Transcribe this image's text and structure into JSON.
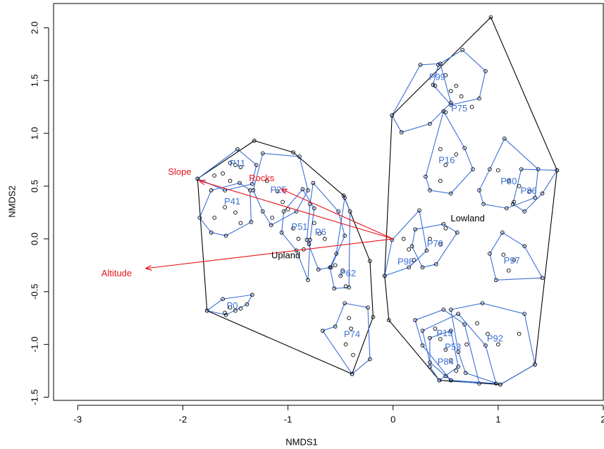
{
  "chart_data": {
    "type": "scatter",
    "x_label": "NMDS1",
    "y_label": "NMDS2",
    "xlim": [
      -3.23,
      2.0
    ],
    "ylim": [
      -1.53,
      2.23
    ],
    "xticks": [
      -3,
      -2,
      -1,
      0,
      1,
      2
    ],
    "yticks": [
      {
        "value": -1.5,
        "label": "-1.5"
      },
      {
        "value": -1,
        "label": "-1.0"
      },
      {
        "value": -0.5,
        "label": "-0.5"
      },
      {
        "value": 0,
        "label": "0.0"
      },
      {
        "value": 0.5,
        "label": "0.5"
      },
      {
        "value": 1,
        "label": "1.0"
      },
      {
        "value": 1.5,
        "label": "1.5"
      },
      {
        "value": 2,
        "label": "2.0"
      }
    ],
    "point_color": "#000000",
    "hull_color": "#000000",
    "group_color": "#3a6fd6",
    "arrow_color": "#e8141b",
    "points": {
      "x": [
        -1.55,
        -1.5,
        -1.45,
        -1.62,
        -1.7,
        -1.55,
        -1.6,
        -1.5,
        -1.45,
        -1.7,
        -1.2,
        -1.1,
        -1.05,
        -1.0,
        -1.15,
        -0.95,
        -0.9,
        -0.85,
        -0.8,
        -0.75,
        -0.7,
        -0.65,
        -0.55,
        -0.5,
        -0.45,
        -0.48,
        -0.42,
        -0.4,
        -0.45,
        -0.38,
        -1.55,
        -1.5,
        -1.45,
        -1.6,
        0.5,
        0.6,
        0.55,
        0.65,
        0.4,
        0.75,
        0.5,
        0.45,
        0.6,
        0.5,
        0.45,
        1.0,
        1.1,
        1.2,
        1.3,
        1.15,
        0.1,
        0.15,
        0.2,
        0.35,
        0.45,
        0.5,
        1.05,
        1.15,
        1.1,
        0.4,
        0.45,
        0.5,
        0.55,
        0.6,
        0.8,
        0.9,
        1.0,
        1.2,
        0.7,
        0.5
      ],
      "y": [
        0.72,
        0.7,
        0.68,
        0.62,
        0.6,
        0.55,
        0.3,
        0.25,
        0.15,
        0.2,
        0.55,
        0.45,
        0.35,
        0.28,
        0.2,
        0.1,
        0.0,
        -0.1,
        -0.05,
        0.15,
        0.05,
        0.0,
        -0.25,
        -0.35,
        -0.45,
        -0.3,
        -0.75,
        -0.85,
        -1.0,
        -1.1,
        -0.65,
        -0.68,
        -0.66,
        -0.7,
        1.55,
        1.45,
        1.4,
        1.35,
        1.45,
        1.25,
        1.2,
        0.85,
        0.8,
        0.7,
        0.55,
        0.65,
        0.55,
        0.5,
        0.45,
        0.35,
        0.0,
        -0.1,
        -0.2,
        0.0,
        -0.05,
        0.1,
        -0.15,
        -0.2,
        -0.3,
        -0.85,
        -0.95,
        -1.05,
        -1.15,
        -1.25,
        -0.8,
        -0.9,
        -1.0,
        -0.9,
        -1.0,
        -1.3
      ]
    },
    "hulls": [
      {
        "x": [
          -1.86,
          -1.32,
          -0.95,
          -0.47,
          -0.22,
          -0.19,
          -0.39,
          -1.77
        ],
        "y": [
          0.57,
          0.93,
          0.82,
          0.41,
          -0.21,
          -0.74,
          -1.28,
          -0.68
        ]
      },
      {
        "x": [
          -0.01,
          0.93,
          1.56,
          1.35,
          1.02,
          0.44,
          -0.04,
          -0.08
        ],
        "y": [
          1.17,
          2.1,
          0.65,
          -1.19,
          -1.38,
          -1.34,
          -0.77,
          -0.35
        ]
      }
    ],
    "groups": [
      {
        "label": "P11",
        "label_x": -1.48,
        "label_y": 0.71,
        "x": [
          -1.86,
          -1.48,
          -1.3,
          -1.34,
          -1.6
        ],
        "y": [
          0.57,
          0.85,
          0.7,
          0.52,
          0.46
        ]
      },
      {
        "label": "P41",
        "label_x": -1.53,
        "label_y": 0.35,
        "x": [
          -1.84,
          -1.73,
          -1.46,
          -1.36,
          -1.35,
          -1.59,
          -1.73
        ],
        "y": [
          0.2,
          0.46,
          0.53,
          0.46,
          0.16,
          0.03,
          0.06
        ]
      },
      {
        "label": "P25",
        "label_x": -1.09,
        "label_y": 0.46,
        "x": [
          -1.24,
          -0.89,
          -0.81,
          -0.92,
          -1.16,
          -1.24,
          -1.33
        ],
        "y": [
          0.81,
          0.78,
          0.46,
          0.26,
          0.13,
          0.26,
          0.46
        ]
      },
      {
        "label": "P51",
        "label_x": -0.89,
        "label_y": 0.11,
        "x": [
          -1.04,
          -0.86,
          -0.75,
          -0.79,
          -0.81,
          -0.92,
          -1.06
        ],
        "y": [
          0.26,
          0.47,
          0.29,
          -0.01,
          -0.39,
          -0.11,
          0.06
        ]
      },
      {
        "label": "P6",
        "label_x": -0.69,
        "label_y": 0.06,
        "x": [
          -0.76,
          -0.52,
          -0.46,
          -0.59,
          -0.71,
          -0.82,
          -0.79
        ],
        "y": [
          0.53,
          0.26,
          0.03,
          -0.27,
          -0.29,
          -0.01,
          0.33
        ]
      },
      {
        "label": "P62",
        "label_x": -0.43,
        "label_y": -0.33,
        "x": [
          -0.46,
          -0.41,
          -0.42,
          -0.56,
          -0.6,
          -0.54
        ],
        "y": [
          0.39,
          0.26,
          -0.46,
          -0.47,
          -0.27,
          -0.14
        ]
      },
      {
        "label": "P74",
        "label_x": -0.39,
        "label_y": -0.91,
        "x": [
          -0.55,
          -0.46,
          -0.24,
          -0.22,
          -0.39,
          -0.67
        ],
        "y": [
          -0.83,
          -0.61,
          -0.65,
          -1.14,
          -1.28,
          -0.87
        ]
      },
      {
        "label": "P0",
        "label_x": -1.53,
        "label_y": -0.64,
        "x": [
          -1.77,
          -1.62,
          -1.34,
          -1.39,
          -1.59
        ],
        "y": [
          -0.68,
          -0.57,
          -0.53,
          -0.62,
          -0.72
        ]
      },
      {
        "label": "P99",
        "label_x": 0.42,
        "label_y": 1.53,
        "x": [
          0.43,
          0.66,
          0.88,
          0.82,
          0.55,
          0.38
        ],
        "y": [
          1.65,
          1.79,
          1.59,
          1.33,
          1.27,
          1.46
        ]
      },
      {
        "label": "P75",
        "label_x": 0.63,
        "label_y": 1.23,
        "x": [
          -0.01,
          0.26,
          0.45,
          0.55,
          0.35,
          0.08
        ],
        "y": [
          1.17,
          1.65,
          1.66,
          1.29,
          1.09,
          1.01
        ]
      },
      {
        "label": "P16",
        "label_x": 0.51,
        "label_y": 0.74,
        "x": [
          0.48,
          0.68,
          0.76,
          0.55,
          0.35,
          0.31
        ],
        "y": [
          1.21,
          0.86,
          0.66,
          0.43,
          0.46,
          0.59
        ]
      },
      {
        "label": "P80",
        "label_x": 1.1,
        "label_y": 0.54,
        "x": [
          1.06,
          1.38,
          1.35,
          1.08,
          0.86,
          0.82,
          0.92
        ],
        "y": [
          0.95,
          0.66,
          0.39,
          0.29,
          0.33,
          0.46,
          0.66
        ]
      },
      {
        "label": "P86",
        "label_x": 1.29,
        "label_y": 0.45,
        "x": [
          1.22,
          1.56,
          1.42,
          1.25,
          1.14
        ],
        "y": [
          0.66,
          0.65,
          0.43,
          0.26,
          0.33
        ]
      },
      {
        "label": "P79",
        "label_x": 0.4,
        "label_y": -0.05,
        "x": [
          0.21,
          0.48,
          0.61,
          0.41,
          0.28,
          0.18
        ],
        "y": [
          0.09,
          0.14,
          0.06,
          -0.24,
          -0.27,
          -0.07
        ]
      },
      {
        "label": "P98",
        "label_x": 0.12,
        "label_y": -0.22,
        "x": [
          -0.08,
          -0.01,
          0.25,
          0.32,
          0.15
        ],
        "y": [
          -0.35,
          -0.01,
          0.27,
          -0.11,
          -0.27
        ]
      },
      {
        "label": "P97",
        "label_x": 1.13,
        "label_y": -0.21,
        "x": [
          1.04,
          1.25,
          1.42,
          0.98,
          0.92
        ],
        "y": [
          0.06,
          -0.07,
          -0.37,
          -0.39,
          -0.14
        ]
      },
      {
        "label": "P92",
        "label_x": 0.97,
        "label_y": -0.95,
        "x": [
          0.55,
          0.85,
          1.25,
          1.35,
          1.02,
          0.69,
          0.62
        ],
        "y": [
          -0.67,
          -0.61,
          -0.71,
          -1.19,
          -1.38,
          -1.27,
          -1.07
        ]
      },
      {
        "label": "P19",
        "label_x": 0.49,
        "label_y": -0.9,
        "x": [
          0.21,
          0.48,
          0.68,
          0.82,
          0.55,
          0.28
        ],
        "y": [
          -0.77,
          -0.67,
          -0.81,
          -1.37,
          -1.34,
          -1.01
        ]
      },
      {
        "label": "P53",
        "label_x": 0.57,
        "label_y": -1.03,
        "x": [
          0.28,
          0.62,
          0.88,
          0.98,
          0.55,
          0.35
        ],
        "y": [
          -0.87,
          -0.71,
          -1.01,
          -1.37,
          -1.34,
          -1.17
        ]
      },
      {
        "label": "P84",
        "label_x": 0.5,
        "label_y": -1.17,
        "x": [
          0.35,
          0.55,
          0.62,
          0.44,
          0.35
        ],
        "y": [
          -0.94,
          -0.87,
          -1.21,
          -1.34,
          -1.21
        ]
      }
    ],
    "arrows": [
      {
        "label": "Slope",
        "x": -1.84,
        "y": 0.55,
        "label_x": -2.03,
        "label_y": 0.63
      },
      {
        "label": "Rocks",
        "x": -1.06,
        "y": 0.47,
        "label_x": -1.25,
        "label_y": 0.57
      },
      {
        "label": "Altitude",
        "x": -2.35,
        "y": -0.28,
        "label_x": -2.63,
        "label_y": -0.33
      }
    ],
    "centroids": [
      {
        "label": "Upland",
        "x": -1.02,
        "y": -0.16
      },
      {
        "label": "Lowland",
        "x": 0.71,
        "y": 0.19
      }
    ]
  }
}
